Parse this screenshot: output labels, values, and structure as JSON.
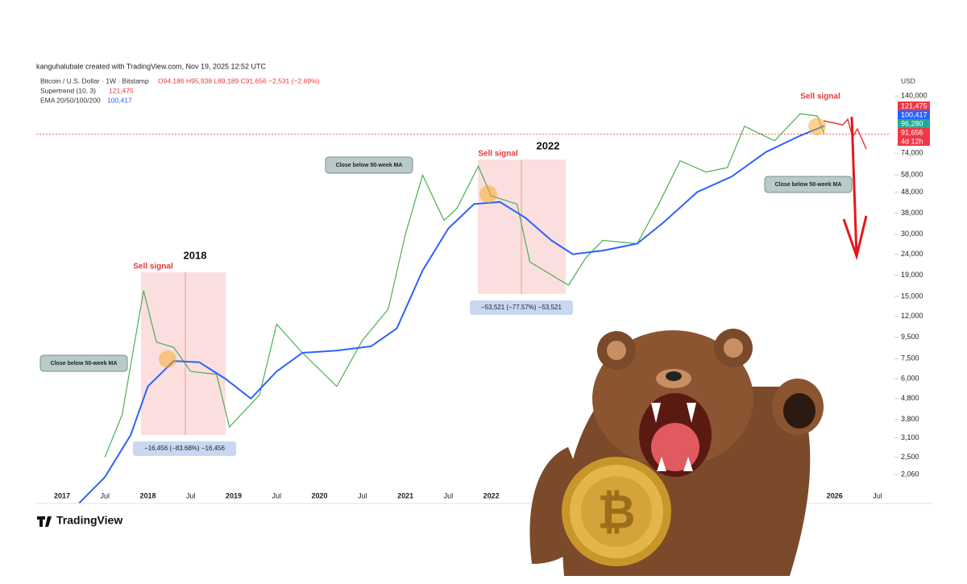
{
  "chart_data": {
    "type": "line",
    "credit": "kanguhalubale created with TradingView.com, Nov 19, 2025 12:52 UTC",
    "symbol": {
      "ohlc": "O94,186 H95,938 L89,189 C91,656 −2,531 (−2.69%)"
    },
    "indicators": [
      {
        "name": "Supertrend (10, 3)",
        "value": "121,475"
      }
    ],
    "currency": "USD",
    "price_tags": [
      "121,475",
      "100,417",
      "96,280",
      "91,656",
      "4d 12h"
    ],
    "annotations": [
      "2018",
      "Sell signal",
      "Close below 50-week MA",
      "−16,456 (−83.68%) −16,456",
      "2022",
      "Sell signal",
      "Close below 50-week MA",
      "−53,521 (−77.57%) −53,521",
      "Sell signal",
      "Close below 50-week MA"
    ],
    "brand": "TradingView",
    "log_scale": true,
    "xlim": [
      2016.7,
      2026.65
    ],
    "xticks": [
      {
        "value": 2017,
        "label": "2017"
      },
      {
        "value": 2017.5,
        "label": "Jul"
      },
      {
        "value": 2018,
        "label": "2018"
      },
      {
        "value": 2018.5,
        "label": "Jul"
      },
      {
        "value": 2019,
        "label": "2019"
      },
      {
        "value": 2019.5,
        "label": "Jul"
      },
      {
        "value": 2020,
        "label": "2020"
      },
      {
        "value": 2020.5,
        "label": "Jul"
      },
      {
        "value": 2021,
        "label": "2021"
      },
      {
        "value": 2021.5,
        "label": "Jul"
      },
      {
        "value": 2022,
        "label": "2022"
      },
      {
        "value": 2026,
        "label": "2026"
      },
      {
        "value": 2026.5,
        "label": "Jul"
      }
    ],
    "ylim": [
      1560,
      174000
    ],
    "yticks": [
      {
        "value": 140000,
        "label": "140,000"
      },
      {
        "value": 74000,
        "label": "74,000"
      },
      {
        "value": 58000,
        "label": "58,000"
      },
      {
        "value": 48000,
        "label": "48,000"
      },
      {
        "value": 38000,
        "label": "38,000"
      },
      {
        "value": 30000,
        "label": "30,000"
      },
      {
        "value": 24000,
        "label": "24,000"
      },
      {
        "value": 19000,
        "label": "19,000"
      },
      {
        "value": 15000,
        "label": "15,000"
      },
      {
        "value": 12000,
        "label": "12,000"
      },
      {
        "value": 9500,
        "label": "9,500"
      },
      {
        "value": 7500,
        "label": "7,500"
      },
      {
        "value": 6000,
        "label": "6,000"
      },
      {
        "value": 4800,
        "label": "4,800"
      },
      {
        "value": 3800,
        "label": "3,800"
      },
      {
        "value": 3100,
        "label": "3,100"
      },
      {
        "value": 2500,
        "label": "2,500"
      },
      {
        "value": 2060,
        "label": "2,060"
      }
    ],
    "series": [
      {
        "name": "Bitcoin / U.S. Dollar · 1W · Bitstamp",
        "color": "#4caf50",
        "x": [
          2017.5,
          2017.7,
          2017.95,
          2018.1,
          2018.3,
          2018.5,
          2018.8,
          2018.95,
          2019.3,
          2019.5,
          2019.8,
          2020.2,
          2020.5,
          2020.8,
          2021.0,
          2021.2,
          2021.45,
          2021.6,
          2021.85,
          2022.0,
          2022.3,
          2022.45,
          2022.9,
          2023.1,
          2023.3,
          2023.7,
          2023.95,
          2024.2,
          2024.5,
          2024.75,
          2024.95,
          2025.3,
          2025.6,
          2025.8,
          2025.88
        ],
        "values": [
          2500,
          4000,
          16000,
          9000,
          8500,
          6500,
          6300,
          3500,
          5000,
          11000,
          8000,
          5500,
          9200,
          13000,
          30000,
          58000,
          35000,
          40000,
          64000,
          46000,
          42000,
          22000,
          17000,
          23000,
          28000,
          27000,
          42000,
          68000,
          60000,
          63000,
          100000,
          85000,
          115000,
          112000,
          91656
        ]
      },
      {
        "name": "EMA 20/50/100/200",
        "color": "#2962ff",
        "value": "100,417",
        "x": [
          2017.2,
          2017.5,
          2017.8,
          2018.0,
          2018.3,
          2018.6,
          2018.9,
          2019.2,
          2019.5,
          2019.8,
          2020.2,
          2020.6,
          2020.9,
          2021.2,
          2021.5,
          2021.8,
          2022.1,
          2022.4,
          2022.7,
          2022.95,
          2023.3,
          2023.7,
          2024.0,
          2024.4,
          2024.8,
          2025.2,
          2025.6,
          2025.88
        ],
        "values": [
          1500,
          2000,
          3200,
          5500,
          7300,
          7200,
          6000,
          4800,
          6500,
          8000,
          8200,
          8600,
          10500,
          20000,
          32000,
          42000,
          43000,
          36000,
          28000,
          24000,
          25000,
          27000,
          34000,
          48000,
          57000,
          75000,
          90000,
          100417
        ]
      }
    ]
  }
}
